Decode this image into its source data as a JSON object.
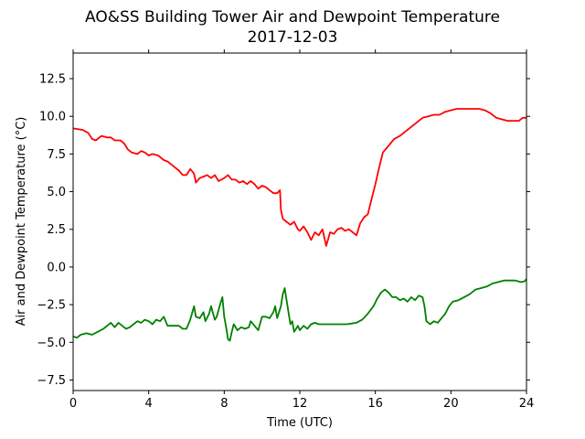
{
  "chart_data": {
    "type": "line",
    "title": "AO&SS Building Tower Air and Dewpoint Temperature",
    "subtitle": "2017-12-03",
    "xlabel": "Time (UTC)",
    "ylabel": "Air and Dewpoint Temperature (°C)",
    "xlim": [
      0,
      24
    ],
    "ylim": [
      -8.2,
      14.2
    ],
    "xticks": [
      0,
      4,
      8,
      12,
      16,
      20,
      24
    ],
    "xtick_labels": [
      "0",
      "4",
      "8",
      "12",
      "16",
      "20",
      "24"
    ],
    "yticks": [
      -7.5,
      -5.0,
      -2.5,
      0.0,
      2.5,
      5.0,
      7.5,
      10.0,
      12.5
    ],
    "ytick_labels": [
      "−7.5",
      "−5.0",
      "−2.5",
      "0.0",
      "2.5",
      "5.0",
      "7.5",
      "10.0",
      "12.5"
    ],
    "grid": false,
    "series": [
      {
        "color": "#ff0000",
        "points": [
          [
            0.0,
            9.2
          ],
          [
            0.5,
            9.1
          ],
          [
            0.8,
            8.9
          ],
          [
            1.0,
            8.5
          ],
          [
            1.2,
            8.4
          ],
          [
            1.5,
            8.7
          ],
          [
            1.8,
            8.6
          ],
          [
            2.0,
            8.6
          ],
          [
            2.2,
            8.4
          ],
          [
            2.5,
            8.4
          ],
          [
            2.7,
            8.2
          ],
          [
            2.9,
            7.8
          ],
          [
            3.1,
            7.6
          ],
          [
            3.4,
            7.5
          ],
          [
            3.6,
            7.7
          ],
          [
            3.8,
            7.6
          ],
          [
            4.0,
            7.4
          ],
          [
            4.2,
            7.5
          ],
          [
            4.5,
            7.4
          ],
          [
            4.8,
            7.1
          ],
          [
            5.0,
            7.0
          ],
          [
            5.2,
            6.8
          ],
          [
            5.4,
            6.6
          ],
          [
            5.6,
            6.4
          ],
          [
            5.8,
            6.1
          ],
          [
            6.0,
            6.1
          ],
          [
            6.2,
            6.5
          ],
          [
            6.4,
            6.2
          ],
          [
            6.5,
            5.6
          ],
          [
            6.7,
            5.9
          ],
          [
            6.9,
            6.0
          ],
          [
            7.1,
            6.1
          ],
          [
            7.3,
            5.9
          ],
          [
            7.5,
            6.1
          ],
          [
            7.7,
            5.7
          ],
          [
            8.0,
            5.9
          ],
          [
            8.2,
            6.1
          ],
          [
            8.4,
            5.8
          ],
          [
            8.6,
            5.8
          ],
          [
            8.8,
            5.6
          ],
          [
            9.0,
            5.7
          ],
          [
            9.2,
            5.5
          ],
          [
            9.4,
            5.7
          ],
          [
            9.6,
            5.5
          ],
          [
            9.8,
            5.2
          ],
          [
            10.0,
            5.4
          ],
          [
            10.2,
            5.3
          ],
          [
            10.4,
            5.1
          ],
          [
            10.6,
            4.9
          ],
          [
            10.8,
            4.9
          ],
          [
            10.95,
            5.1
          ],
          [
            11.0,
            3.8
          ],
          [
            11.1,
            3.2
          ],
          [
            11.3,
            3.0
          ],
          [
            11.5,
            2.8
          ],
          [
            11.7,
            3.0
          ],
          [
            11.9,
            2.5
          ],
          [
            12.0,
            2.4
          ],
          [
            12.2,
            2.7
          ],
          [
            12.4,
            2.3
          ],
          [
            12.6,
            1.8
          ],
          [
            12.8,
            2.3
          ],
          [
            13.0,
            2.1
          ],
          [
            13.2,
            2.5
          ],
          [
            13.4,
            1.4
          ],
          [
            13.6,
            2.3
          ],
          [
            13.8,
            2.2
          ],
          [
            14.0,
            2.5
          ],
          [
            14.2,
            2.6
          ],
          [
            14.4,
            2.4
          ],
          [
            14.6,
            2.5
          ],
          [
            14.8,
            2.3
          ],
          [
            15.0,
            2.1
          ],
          [
            15.2,
            2.9
          ],
          [
            15.4,
            3.3
          ],
          [
            15.6,
            3.5
          ],
          [
            15.8,
            4.5
          ],
          [
            16.0,
            5.5
          ],
          [
            16.2,
            6.6
          ],
          [
            16.4,
            7.6
          ],
          [
            16.6,
            7.9
          ],
          [
            16.8,
            8.2
          ],
          [
            17.0,
            8.5
          ],
          [
            17.3,
            8.7
          ],
          [
            17.6,
            9.0
          ],
          [
            17.9,
            9.3
          ],
          [
            18.2,
            9.6
          ],
          [
            18.5,
            9.9
          ],
          [
            18.8,
            10.0
          ],
          [
            19.1,
            10.1
          ],
          [
            19.4,
            10.1
          ],
          [
            19.7,
            10.3
          ],
          [
            20.0,
            10.4
          ],
          [
            20.3,
            10.5
          ],
          [
            20.6,
            10.5
          ],
          [
            20.9,
            10.5
          ],
          [
            21.2,
            10.5
          ],
          [
            21.5,
            10.5
          ],
          [
            21.8,
            10.4
          ],
          [
            22.1,
            10.2
          ],
          [
            22.4,
            9.9
          ],
          [
            22.7,
            9.8
          ],
          [
            23.0,
            9.7
          ],
          [
            23.3,
            9.7
          ],
          [
            23.6,
            9.7
          ],
          [
            23.8,
            9.9
          ],
          [
            24.0,
            9.9
          ]
        ]
      },
      {
        "color": "#008000",
        "points": [
          [
            0.0,
            -4.6
          ],
          [
            0.2,
            -4.7
          ],
          [
            0.4,
            -4.5
          ],
          [
            0.7,
            -4.4
          ],
          [
            1.0,
            -4.5
          ],
          [
            1.3,
            -4.3
          ],
          [
            1.6,
            -4.1
          ],
          [
            1.8,
            -3.9
          ],
          [
            2.0,
            -3.7
          ],
          [
            2.2,
            -4.0
          ],
          [
            2.4,
            -3.7
          ],
          [
            2.6,
            -3.9
          ],
          [
            2.8,
            -4.1
          ],
          [
            3.0,
            -4.0
          ],
          [
            3.2,
            -3.8
          ],
          [
            3.4,
            -3.6
          ],
          [
            3.6,
            -3.7
          ],
          [
            3.8,
            -3.5
          ],
          [
            4.0,
            -3.6
          ],
          [
            4.2,
            -3.8
          ],
          [
            4.4,
            -3.5
          ],
          [
            4.6,
            -3.6
          ],
          [
            4.8,
            -3.3
          ],
          [
            5.0,
            -3.9
          ],
          [
            5.2,
            -3.9
          ],
          [
            5.4,
            -3.9
          ],
          [
            5.6,
            -3.9
          ],
          [
            5.8,
            -4.1
          ],
          [
            6.0,
            -4.1
          ],
          [
            6.2,
            -3.5
          ],
          [
            6.4,
            -2.6
          ],
          [
            6.5,
            -3.3
          ],
          [
            6.7,
            -3.4
          ],
          [
            6.9,
            -3.0
          ],
          [
            7.0,
            -3.6
          ],
          [
            7.2,
            -3.1
          ],
          [
            7.3,
            -2.6
          ],
          [
            7.5,
            -3.5
          ],
          [
            7.6,
            -3.3
          ],
          [
            7.8,
            -2.4
          ],
          [
            7.9,
            -2.0
          ],
          [
            8.0,
            -3.3
          ],
          [
            8.1,
            -4.0
          ],
          [
            8.2,
            -4.8
          ],
          [
            8.3,
            -4.9
          ],
          [
            8.4,
            -4.3
          ],
          [
            8.5,
            -3.8
          ],
          [
            8.7,
            -4.2
          ],
          [
            8.9,
            -4.0
          ],
          [
            9.1,
            -4.1
          ],
          [
            9.3,
            -4.0
          ],
          [
            9.4,
            -3.6
          ],
          [
            9.6,
            -3.9
          ],
          [
            9.8,
            -4.2
          ],
          [
            10.0,
            -3.3
          ],
          [
            10.2,
            -3.3
          ],
          [
            10.4,
            -3.4
          ],
          [
            10.6,
            -3.0
          ],
          [
            10.7,
            -2.6
          ],
          [
            10.8,
            -3.4
          ],
          [
            11.0,
            -2.6
          ],
          [
            11.1,
            -1.8
          ],
          [
            11.2,
            -1.4
          ],
          [
            11.3,
            -2.2
          ],
          [
            11.4,
            -3.0
          ],
          [
            11.5,
            -3.8
          ],
          [
            11.6,
            -3.6
          ],
          [
            11.7,
            -4.3
          ],
          [
            11.8,
            -4.1
          ],
          [
            11.9,
            -3.9
          ],
          [
            12.0,
            -4.2
          ],
          [
            12.2,
            -3.9
          ],
          [
            12.4,
            -4.1
          ],
          [
            12.6,
            -3.8
          ],
          [
            12.8,
            -3.7
          ],
          [
            13.0,
            -3.8
          ],
          [
            13.5,
            -3.8
          ],
          [
            14.0,
            -3.8
          ],
          [
            14.5,
            -3.8
          ],
          [
            15.0,
            -3.7
          ],
          [
            15.3,
            -3.5
          ],
          [
            15.6,
            -3.1
          ],
          [
            15.9,
            -2.6
          ],
          [
            16.1,
            -2.1
          ],
          [
            16.3,
            -1.7
          ],
          [
            16.5,
            -1.5
          ],
          [
            16.7,
            -1.7
          ],
          [
            16.9,
            -2.0
          ],
          [
            17.1,
            -2.0
          ],
          [
            17.3,
            -2.2
          ],
          [
            17.5,
            -2.1
          ],
          [
            17.7,
            -2.3
          ],
          [
            17.9,
            -2.0
          ],
          [
            18.1,
            -2.2
          ],
          [
            18.3,
            -1.9
          ],
          [
            18.5,
            -2.0
          ],
          [
            18.6,
            -2.6
          ],
          [
            18.7,
            -3.6
          ],
          [
            18.9,
            -3.8
          ],
          [
            19.1,
            -3.6
          ],
          [
            19.3,
            -3.7
          ],
          [
            19.5,
            -3.4
          ],
          [
            19.7,
            -3.1
          ],
          [
            19.9,
            -2.6
          ],
          [
            20.1,
            -2.3
          ],
          [
            20.4,
            -2.2
          ],
          [
            20.7,
            -2.0
          ],
          [
            21.0,
            -1.8
          ],
          [
            21.3,
            -1.5
          ],
          [
            21.6,
            -1.4
          ],
          [
            21.9,
            -1.3
          ],
          [
            22.2,
            -1.1
          ],
          [
            22.5,
            -1.0
          ],
          [
            22.8,
            -0.9
          ],
          [
            23.1,
            -0.9
          ],
          [
            23.4,
            -0.9
          ],
          [
            23.7,
            -1.0
          ],
          [
            23.9,
            -0.95
          ],
          [
            24.0,
            -0.8
          ]
        ]
      }
    ]
  }
}
